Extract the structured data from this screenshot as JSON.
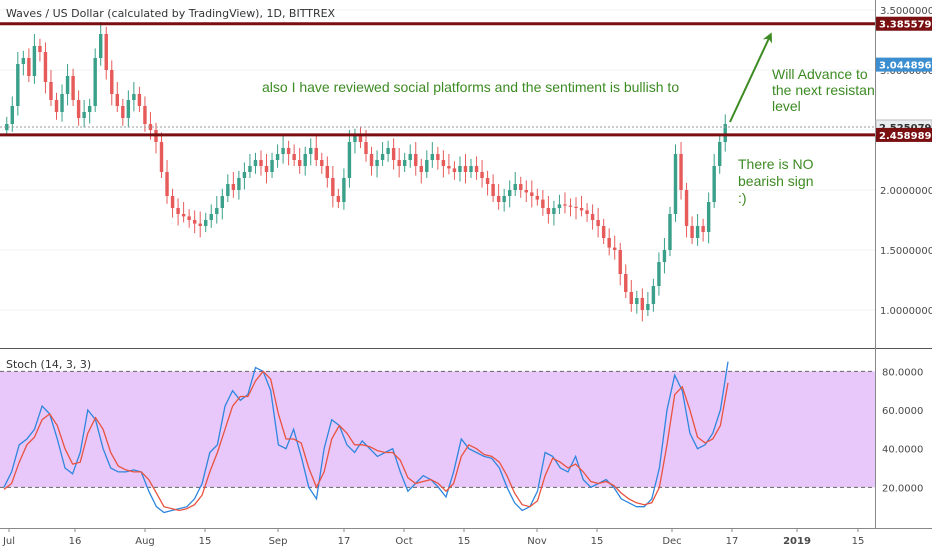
{
  "header": {
    "symbol_title": "Waves / US Dollar (calculated by TradingView), 1D, BITTREX"
  },
  "price_levels": {
    "resistance": "3.38557966",
    "line_tag_1": "3.04489667",
    "line_tag_2": "2.52507986",
    "support": "2.45898961"
  },
  "annotations": {
    "sentiment": "also I have reviewed social platforms and the sentiment is bullish to",
    "advance_1": "Will Advance to",
    "advance_2": "the next resistan",
    "advance_3": "level",
    "nobear_1": "There is NO",
    "nobear_2": "bearish sign",
    "nobear_3": ":)"
  },
  "indicator": {
    "label": "Stoch (14, 3, 3)",
    "colors": {
      "k": "#2e86de",
      "d": "#e8533f",
      "band": "#e8c8fb"
    }
  },
  "colors": {
    "up": "#3aa08a",
    "down": "#e65a5a",
    "level_line": "#7a0f12",
    "annotation": "#3d8b23",
    "blue_tag": "#3b8fd1",
    "grey_tag": "#e9ecef"
  },
  "chart_data": [
    {
      "type": "candlestick",
      "title": "Waves / US Dollar (calculated by TradingView), 1D, BITTREX",
      "x_ticks": [
        "Jul",
        "16",
        "Aug",
        "15",
        "Sep",
        "17",
        "Oct",
        "15",
        "Nov",
        "15",
        "Dec",
        "17",
        "2019",
        "15"
      ],
      "y_ticks": [
        "3.50000000",
        "3.00000000",
        "2.50000000",
        "2.00000000",
        "1.50000000",
        "1.00000000"
      ],
      "ylim": [
        0.7,
        3.55
      ],
      "levels": [
        3.38557966,
        2.45898961
      ],
      "series": [
        {
          "values": [
            2.55,
            2.7,
            3.05,
            3.1,
            2.95,
            3.2,
            3.15,
            2.9,
            2.75,
            2.65,
            2.8,
            2.95,
            2.75,
            2.6,
            2.65,
            2.7,
            3.1,
            3.3,
            3.0,
            2.8,
            2.7,
            2.6,
            2.75,
            2.8,
            2.7,
            2.55,
            2.5,
            2.4,
            2.15,
            1.95,
            1.85,
            1.8,
            1.78,
            1.75,
            1.72,
            1.7,
            1.75,
            1.8,
            1.85,
            1.95,
            2.05,
            2.0,
            2.1,
            2.15,
            2.2,
            2.25,
            2.2,
            2.15,
            2.25,
            2.3,
            2.35,
            2.3,
            2.25,
            2.2,
            2.3,
            2.35,
            2.25,
            2.2,
            2.1,
            1.95,
            1.9,
            2.1,
            2.4,
            2.45,
            2.4,
            2.3,
            2.2,
            2.25,
            2.3,
            2.35,
            2.25,
            2.2,
            2.25,
            2.3,
            2.2,
            2.15,
            2.25,
            2.3,
            2.25,
            2.2,
            2.18,
            2.15,
            2.2,
            2.15,
            2.2,
            2.15,
            2.1,
            2.05,
            1.95,
            1.9,
            1.95,
            2.0,
            2.05,
            2.0,
            1.98,
            1.95,
            1.92,
            1.85,
            1.8,
            1.85,
            1.88,
            1.87,
            1.86,
            1.85,
            1.83,
            1.8,
            1.75,
            1.7,
            1.6,
            1.52,
            1.5,
            1.3,
            1.15,
            1.05,
            1.1,
            1.0,
            1.05,
            1.2,
            1.4,
            1.5,
            1.8,
            2.3,
            2.0,
            1.7,
            1.6,
            1.7,
            1.65,
            1.9,
            2.2,
            2.4,
            2.55
          ]
        }
      ]
    },
    {
      "type": "line",
      "title": "Stoch (14, 3, 3)",
      "y_ticks": [
        "80.0000",
        "60.0000",
        "40.0000",
        "20.0000"
      ],
      "ylim": [
        0,
        90
      ],
      "band": [
        20,
        80
      ],
      "series": [
        {
          "name": "%K",
          "values": [
            20,
            28,
            42,
            45,
            50,
            62,
            58,
            45,
            30,
            27,
            38,
            60,
            55,
            40,
            30,
            28,
            28,
            29,
            28,
            18,
            10,
            7,
            8,
            9,
            10,
            14,
            22,
            38,
            42,
            62,
            70,
            65,
            68,
            82,
            80,
            70,
            42,
            40,
            50,
            36,
            20,
            14,
            40,
            55,
            52,
            42,
            38,
            44,
            40,
            36,
            38,
            40,
            28,
            18,
            22,
            26,
            24,
            20,
            15,
            28,
            45,
            40,
            38,
            36,
            35,
            30,
            20,
            12,
            8,
            10,
            18,
            38,
            36,
            30,
            28,
            36,
            24,
            20,
            22,
            24,
            20,
            14,
            12,
            10,
            10,
            14,
            30,
            60,
            78,
            70,
            48,
            40,
            42,
            48,
            60,
            85
          ]
        },
        {
          "name": "%D",
          "values": [
            19,
            22,
            33,
            42,
            46,
            55,
            58,
            52,
            40,
            32,
            33,
            48,
            56,
            50,
            38,
            31,
            29,
            28,
            28,
            24,
            17,
            10,
            9,
            8,
            9,
            11,
            16,
            28,
            38,
            50,
            62,
            67,
            67,
            75,
            80,
            76,
            58,
            45,
            45,
            43,
            30,
            20,
            28,
            45,
            52,
            48,
            42,
            42,
            41,
            39,
            38,
            38,
            34,
            25,
            22,
            23,
            24,
            22,
            18,
            22,
            36,
            42,
            40,
            37,
            36,
            33,
            26,
            17,
            11,
            10,
            13,
            26,
            35,
            33,
            30,
            32,
            28,
            23,
            22,
            23,
            21,
            17,
            14,
            12,
            11,
            12,
            20,
            42,
            68,
            72,
            60,
            46,
            43,
            45,
            52,
            74
          ]
        }
      ]
    }
  ]
}
